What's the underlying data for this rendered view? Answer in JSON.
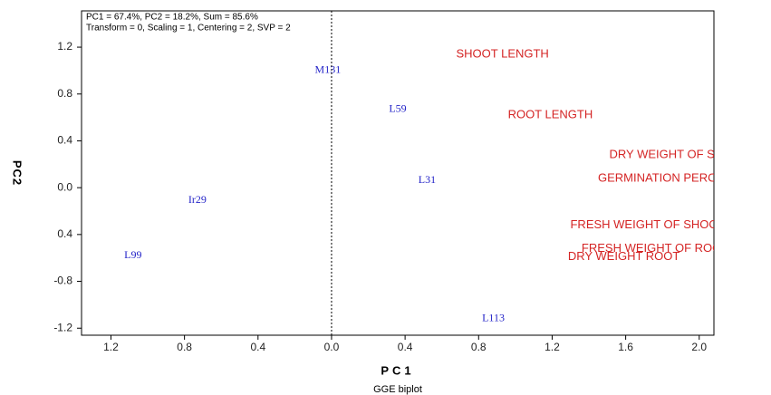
{
  "chart_data": {
    "type": "scatter",
    "title": "PC1 = 67.4%, PC2 = 18.2%, Sum = 85.6%",
    "subtitle": "Transform = 0, Scaling = 1, Centering = 2, SVP = 2",
    "x_label": "PC1",
    "y_label": "PC2",
    "caption": "GGE biplot",
    "xlim": [
      -1.36,
      2.08
    ],
    "ylim": [
      -1.26,
      1.51
    ],
    "xticks": [
      {
        "value": -1.2,
        "label": "1.2"
      },
      {
        "value": -0.8,
        "label": "0.8"
      },
      {
        "value": -0.4,
        "label": "0.4"
      },
      {
        "value": 0,
        "label": "0.0"
      },
      0.4,
      0.8,
      1.2,
      1.6,
      {
        "value": 2,
        "label": "2.0"
      }
    ],
    "yticks": [
      1.2,
      0.8,
      0.4,
      {
        "value": 0,
        "label": "0.0"
      },
      {
        "value": -0.4,
        "label": "0.4"
      },
      -0.8,
      -1.2
    ],
    "series": [
      {
        "color": "#2424c8",
        "labels": [
          "M131",
          "L59",
          "L31",
          "Ir29",
          "L99",
          "L113"
        ],
        "x": [
          -0.02,
          0.36,
          0.52,
          -0.73,
          -1.08,
          0.88
        ],
        "values": [
          1.0,
          0.67,
          0.06,
          -0.11,
          -0.58,
          -1.12
        ]
      },
      {
        "color": "#d42424",
        "labels": [
          "SHOOT LENGTH",
          "ROOT LENGTH",
          "DRY WEIGHT OF SHOOT",
          "GERMINATION PERCENTAGE",
          "FRESH WEIGHT OF SHOOT",
          "FRESH WEIGHT OF ROOT",
          "DRY WEIGHT ROOT"
        ],
        "x": [
          0.93,
          1.19,
          1.89,
          1.9,
          1.72,
          1.76,
          1.59
        ],
        "values": [
          1.14,
          0.62,
          0.28,
          0.08,
          -0.32,
          -0.52,
          -0.59
        ]
      }
    ]
  }
}
